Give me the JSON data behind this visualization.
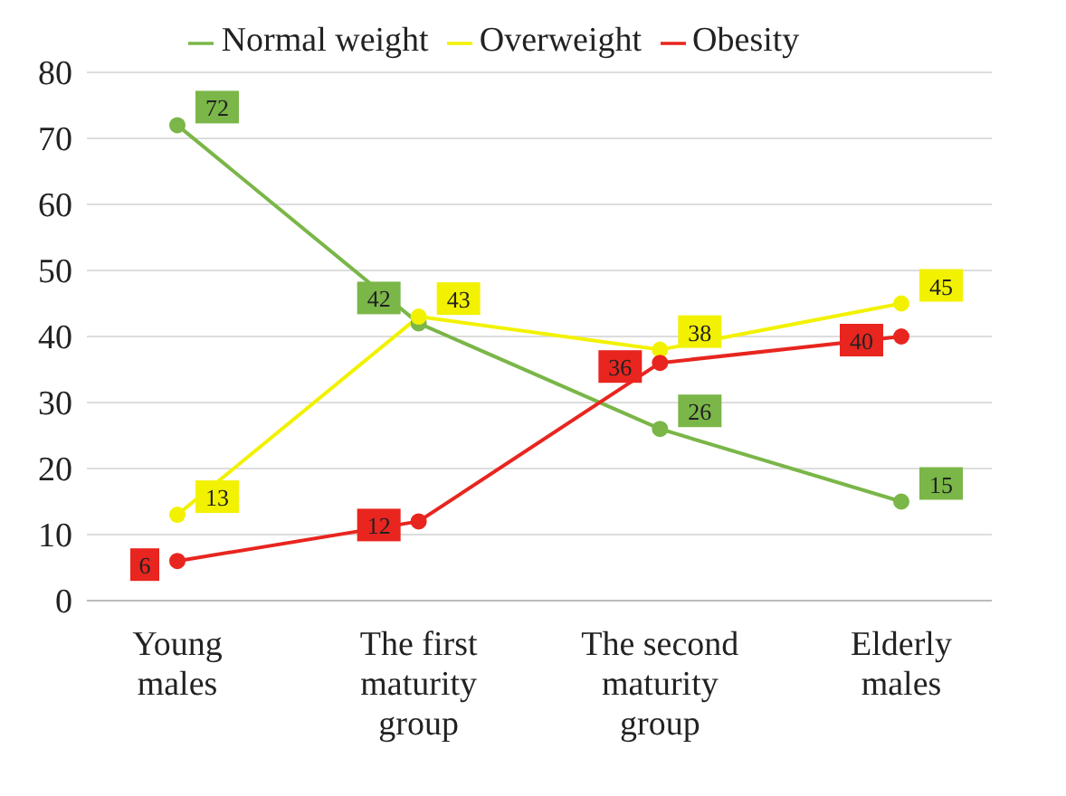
{
  "chart_data": {
    "type": "line",
    "categories": [
      "Young males",
      "The first maturity group",
      "The second maturity group",
      "Elderly males"
    ],
    "series": [
      {
        "name": "Normal weight",
        "color": "#7ab648",
        "values": [
          72,
          42,
          26,
          15
        ]
      },
      {
        "name": "Overweight",
        "color": "#f2f200",
        "values": [
          13,
          43,
          38,
          45
        ]
      },
      {
        "name": "Obesity",
        "color": "#e8251f",
        "values": [
          6,
          12,
          36,
          40
        ]
      }
    ],
    "ylim": [
      0,
      80
    ],
    "yticks": [
      0,
      10,
      20,
      30,
      40,
      50,
      60,
      70,
      80
    ],
    "grid": "y",
    "legend": "top",
    "marker": "circle",
    "line_style": "solid",
    "data_labels": true
  }
}
